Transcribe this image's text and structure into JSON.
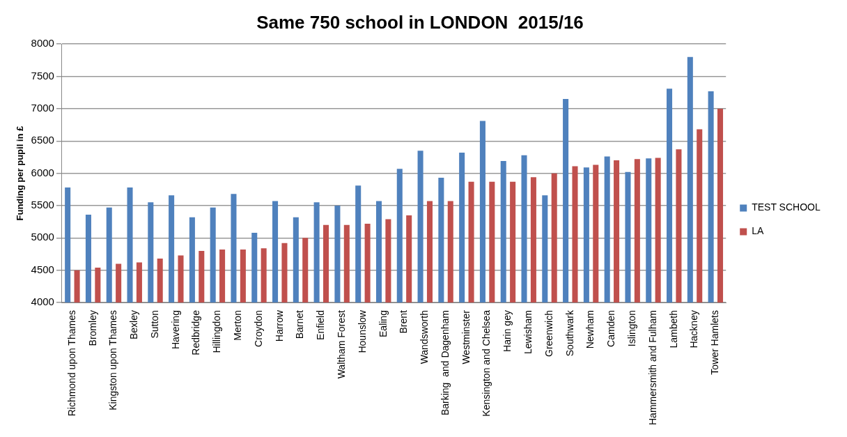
{
  "chart_data": {
    "type": "bar",
    "title": "Same 750 school in LONDON  2015/16",
    "ylabel": "Funding per pupil in £",
    "categories": [
      "Richmond upon Thames",
      "Bromley",
      "Kingston upon Thames",
      "Bexley",
      "Sutton",
      "Havering",
      "Redbridge",
      "Hillingdon",
      "Merton",
      "Croydon",
      "Harrow",
      "Barnet",
      "Enfield",
      "Waltham Forest",
      "Hounslow",
      "Ealing",
      "Brent",
      "Wandsworth",
      "Barking  and Dagenham",
      "Westminster",
      "Kensington and Chelsea",
      "Harin gey",
      "Lewisham",
      "Greenwich",
      "Southwark",
      "Newham",
      "Camden",
      "Islington",
      "Hammersmith and Fulham",
      "Lambeth",
      "Hackney",
      "Tower Hamlets"
    ],
    "series": [
      {
        "name": "TEST SCHOOL",
        "color": "#4f81bd",
        "values": [
          5780,
          5360,
          5470,
          5780,
          5550,
          5660,
          5320,
          5470,
          5680,
          5080,
          5570,
          5320,
          5550,
          5500,
          5810,
          5570,
          6070,
          6350,
          5930,
          6320,
          6810,
          6190,
          6280,
          5660,
          7150,
          6090,
          6260,
          6020,
          6230,
          7310,
          7800,
          7270
        ]
      },
      {
        "name": "LA",
        "color": "#c0504d",
        "values": [
          4500,
          4540,
          4600,
          4620,
          4680,
          4730,
          4800,
          4820,
          4820,
          4840,
          4920,
          5000,
          5200,
          5200,
          5220,
          5290,
          5350,
          5570,
          5570,
          5870,
          5870,
          5870,
          5940,
          6000,
          6110,
          6130,
          6200,
          6220,
          6240,
          6370,
          6680,
          7000
        ]
      }
    ],
    "ylim": [
      4000,
      8000
    ],
    "yticks": [
      4000,
      4500,
      5000,
      5500,
      6000,
      6500,
      7000,
      7500,
      8000
    ],
    "grid": "y",
    "legend": "right"
  }
}
